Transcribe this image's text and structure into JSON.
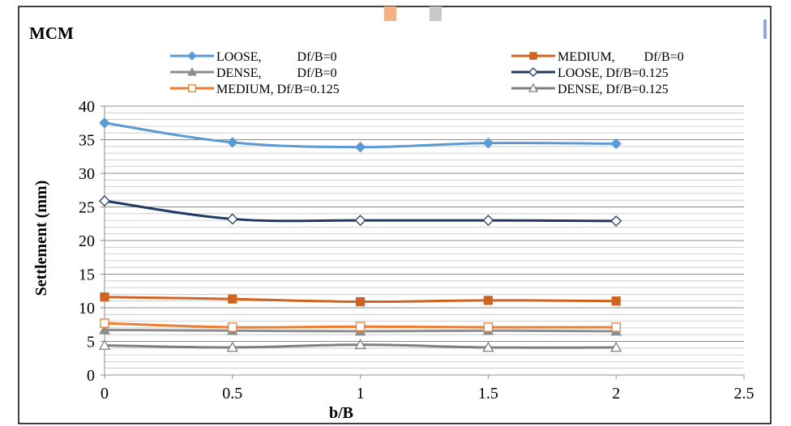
{
  "chart_data": {
    "type": "line",
    "title": "MCM",
    "xlabel": "b/B",
    "ylabel": "Settlement (mm)",
    "xlim": [
      0,
      2.5
    ],
    "ylim": [
      0,
      40
    ],
    "x_ticks": [
      "0",
      "0.5",
      "1",
      "1.5",
      "2",
      "2.5"
    ],
    "y_ticks": [
      "0",
      "5",
      "10",
      "15",
      "20",
      "25",
      "30",
      "35",
      "40"
    ],
    "grid": true,
    "legend_position": "top",
    "x": [
      0,
      0.5,
      1,
      1.5,
      2
    ],
    "series": [
      {
        "name": "LOOSE,           Df/B=0",
        "values": [
          37.5,
          34.6,
          33.9,
          34.5,
          34.4
        ],
        "color": "#5b9bd5",
        "marker": "diamond",
        "filled": true
      },
      {
        "name": "MEDIUM,         Df/B=0",
        "values": [
          11.6,
          11.3,
          10.9,
          11.1,
          11.0
        ],
        "color": "#d0631f",
        "marker": "square",
        "filled": true
      },
      {
        "name": "DENSE,           Df/B=0",
        "values": [
          6.7,
          6.6,
          6.5,
          6.6,
          6.5
        ],
        "color": "#8c8c8c",
        "marker": "triangle",
        "filled": true
      },
      {
        "name": "LOOSE, Df/B=0.125",
        "values": [
          25.9,
          23.2,
          23.0,
          23.0,
          22.9
        ],
        "color": "#1f3864",
        "marker": "diamond",
        "filled": false
      },
      {
        "name": "MEDIUM, Df/B=0.125",
        "values": [
          7.7,
          7.1,
          7.2,
          7.1,
          7.1
        ],
        "color": "#ed7d31",
        "marker": "square",
        "filled": false
      },
      {
        "name": "DENSE, Df/B=0.125",
        "values": [
          4.4,
          4.1,
          4.5,
          4.1,
          4.1
        ],
        "color": "#7f7f7f",
        "marker": "triangle",
        "filled": false
      }
    ]
  }
}
